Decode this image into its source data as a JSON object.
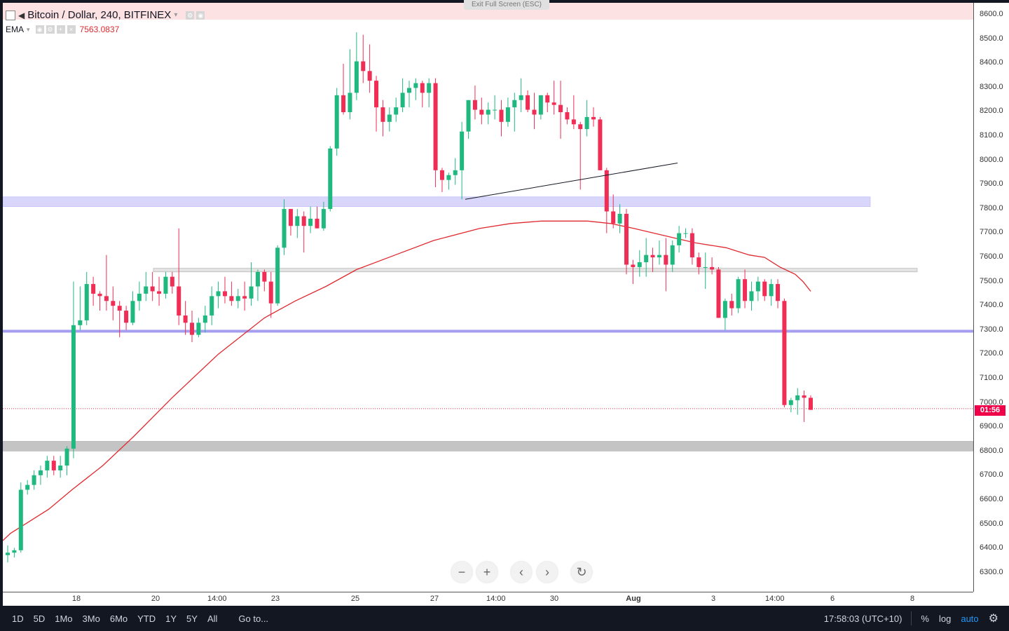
{
  "header": {
    "symbol_title": "Bitcoin / Dollar, 240, BITFINEX",
    "indicator_name": "EMA",
    "indicator_value": "7563.0837",
    "exit_fullscreen": "Exit Full Screen (ESC)"
  },
  "price_axis": {
    "ticks": [
      "8600.0",
      "8500.0",
      "8400.0",
      "8300.0",
      "8200.0",
      "8100.0",
      "8000.0",
      "7900.0",
      "7800.0",
      "7700.0",
      "7600.0",
      "7500.0",
      "7400.0",
      "7300.0",
      "7200.0",
      "7100.0",
      "7000.0",
      "6900.0",
      "6800.0",
      "6700.0",
      "6600.0",
      "6500.0",
      "6400.0",
      "6300.0"
    ],
    "countdown_label": "01:56"
  },
  "time_axis": {
    "ticks": [
      "18",
      "20",
      "14:00",
      "23",
      "25",
      "27",
      "14:00",
      "30",
      "Aug",
      "3",
      "14:00",
      "6",
      "8"
    ]
  },
  "nav": {
    "zoom_out": "−",
    "zoom_in": "+",
    "scroll_left": "‹",
    "scroll_right": "›",
    "reset": "↻"
  },
  "bottom_toolbar": {
    "ranges": [
      "1D",
      "5D",
      "1Mo",
      "3Mo",
      "6Mo",
      "YTD",
      "1Y",
      "5Y",
      "All"
    ],
    "goto": "Go to...",
    "clock": "17:58:03 (UTC+10)",
    "percent": "%",
    "log": "log",
    "auto": "auto",
    "settings_icon": "gear-icon"
  },
  "colors": {
    "up": "#26a69a",
    "up_fill": "#1fb980",
    "down": "#ef2d55",
    "ema": "#e0292f",
    "zone_blue": "#d9d6fb",
    "line_blue": "#a59df0",
    "zone_gray": "#c4c4c4"
  },
  "chart_data": {
    "type": "candlestick",
    "title": "Bitcoin / Dollar, 240, BITFINEX",
    "ylim": [
      6220,
      8640
    ],
    "last_price": 6955,
    "candles_ohlc": [
      [
        6350,
        6390,
        6320,
        6360
      ],
      [
        6360,
        6380,
        6340,
        6370
      ],
      [
        6370,
        6650,
        6360,
        6620
      ],
      [
        6620,
        6660,
        6600,
        6640
      ],
      [
        6640,
        6700,
        6620,
        6680
      ],
      [
        6680,
        6720,
        6640,
        6700
      ],
      [
        6700,
        6760,
        6670,
        6740
      ],
      [
        6740,
        6760,
        6680,
        6700
      ],
      [
        6700,
        6760,
        6670,
        6720
      ],
      [
        6720,
        6800,
        6680,
        6790
      ],
      [
        6790,
        7480,
        6750,
        7300
      ],
      [
        7300,
        7460,
        7280,
        7320
      ],
      [
        7320,
        7520,
        7300,
        7470
      ],
      [
        7470,
        7500,
        7380,
        7430
      ],
      [
        7430,
        7440,
        7360,
        7420
      ],
      [
        7420,
        7590,
        7360,
        7400
      ],
      [
        7400,
        7460,
        7320,
        7380
      ],
      [
        7380,
        7400,
        7250,
        7360
      ],
      [
        7360,
        7380,
        7280,
        7310
      ],
      [
        7310,
        7440,
        7300,
        7400
      ],
      [
        7400,
        7480,
        7360,
        7430
      ],
      [
        7430,
        7520,
        7400,
        7460
      ],
      [
        7460,
        7520,
        7400,
        7440
      ],
      [
        7440,
        7500,
        7380,
        7430
      ],
      [
        7430,
        7520,
        7410,
        7500
      ],
      [
        7500,
        7520,
        7430,
        7460
      ],
      [
        7460,
        7700,
        7300,
        7340
      ],
      [
        7340,
        7400,
        7260,
        7310
      ],
      [
        7310,
        7360,
        7230,
        7260
      ],
      [
        7260,
        7330,
        7250,
        7310
      ],
      [
        7310,
        7380,
        7270,
        7340
      ],
      [
        7340,
        7460,
        7300,
        7420
      ],
      [
        7420,
        7480,
        7370,
        7440
      ],
      [
        7440,
        7500,
        7390,
        7420
      ],
      [
        7420,
        7480,
        7380,
        7400
      ],
      [
        7400,
        7450,
        7370,
        7420
      ],
      [
        7420,
        7480,
        7360,
        7410
      ],
      [
        7410,
        7560,
        7380,
        7460
      ],
      [
        7460,
        7530,
        7400,
        7520
      ],
      [
        7520,
        7530,
        7440,
        7480
      ],
      [
        7480,
        7520,
        7330,
        7390
      ],
      [
        7390,
        7630,
        7380,
        7620
      ],
      [
        7620,
        7820,
        7590,
        7780
      ],
      [
        7780,
        7780,
        7670,
        7710
      ],
      [
        7710,
        7780,
        7660,
        7750
      ],
      [
        7750,
        7770,
        7600,
        7710
      ],
      [
        7710,
        7790,
        7680,
        7740
      ],
      [
        7740,
        7790,
        7700,
        7700
      ],
      [
        7700,
        7810,
        7690,
        7780
      ],
      [
        7780,
        8040,
        7770,
        8030
      ],
      [
        8030,
        8280,
        8000,
        8250
      ],
      [
        8250,
        8380,
        8170,
        8180
      ],
      [
        8180,
        8440,
        8150,
        8260
      ],
      [
        8260,
        8510,
        8230,
        8390
      ],
      [
        8390,
        8500,
        8300,
        8350
      ],
      [
        8350,
        8460,
        8260,
        8310
      ],
      [
        8310,
        8330,
        8100,
        8200
      ],
      [
        8200,
        8230,
        8080,
        8140
      ],
      [
        8140,
        8200,
        8100,
        8170
      ],
      [
        8170,
        8240,
        8140,
        8200
      ],
      [
        8200,
        8320,
        8180,
        8260
      ],
      [
        8260,
        8310,
        8200,
        8280
      ],
      [
        8280,
        8320,
        8230,
        8300
      ],
      [
        8300,
        8310,
        8200,
        8260
      ],
      [
        8260,
        8320,
        8200,
        8300
      ],
      [
        8300,
        8320,
        7870,
        7940
      ],
      [
        7940,
        7950,
        7850,
        7900
      ],
      [
        7900,
        7930,
        7860,
        7920
      ],
      [
        7920,
        7990,
        7880,
        7940
      ],
      [
        7940,
        8140,
        7820,
        8100
      ],
      [
        8100,
        8230,
        8070,
        8230
      ],
      [
        8230,
        8290,
        8150,
        8190
      ],
      [
        8190,
        8240,
        8130,
        8170
      ],
      [
        8170,
        8220,
        8130,
        8190
      ],
      [
        8190,
        8250,
        8150,
        8190
      ],
      [
        8190,
        8230,
        8080,
        8140
      ],
      [
        8140,
        8240,
        8120,
        8200
      ],
      [
        8200,
        8260,
        8100,
        8230
      ],
      [
        8230,
        8320,
        8180,
        8250
      ],
      [
        8250,
        8270,
        8180,
        8190
      ],
      [
        8190,
        8260,
        8110,
        8170
      ],
      [
        8170,
        8250,
        8150,
        8250
      ],
      [
        8250,
        8260,
        8180,
        8220
      ],
      [
        8220,
        8310,
        8170,
        8210
      ],
      [
        8210,
        8310,
        8070,
        8180
      ],
      [
        8180,
        8200,
        8130,
        8150
      ],
      [
        8150,
        8250,
        8110,
        8130
      ],
      [
        8130,
        8140,
        7860,
        8110
      ],
      [
        8110,
        8230,
        8080,
        8160
      ],
      [
        8160,
        8200,
        8120,
        8150
      ],
      [
        8150,
        8160,
        7940,
        7940
      ],
      [
        7940,
        7950,
        7680,
        7770
      ],
      [
        7770,
        7840,
        7700,
        7720
      ],
      [
        7720,
        7800,
        7680,
        7760
      ],
      [
        7760,
        7780,
        7510,
        7550
      ],
      [
        7550,
        7570,
        7470,
        7540
      ],
      [
        7540,
        7610,
        7500,
        7560
      ],
      [
        7560,
        7660,
        7500,
        7590
      ],
      [
        7590,
        7620,
        7520,
        7580
      ],
      [
        7580,
        7650,
        7550,
        7590
      ],
      [
        7590,
        7660,
        7440,
        7550
      ],
      [
        7550,
        7650,
        7520,
        7630
      ],
      [
        7630,
        7710,
        7600,
        7680
      ],
      [
        7680,
        7700,
        7660,
        7680
      ],
      [
        7680,
        7700,
        7550,
        7580
      ],
      [
        7580,
        7600,
        7510,
        7540
      ],
      [
        7540,
        7600,
        7450,
        7540
      ],
      [
        7540,
        7580,
        7510,
        7530
      ],
      [
        7530,
        7540,
        7330,
        7330
      ],
      [
        7330,
        7410,
        7280,
        7400
      ],
      [
        7400,
        7430,
        7340,
        7370
      ],
      [
        7370,
        7500,
        7350,
        7490
      ],
      [
        7490,
        7530,
        7370,
        7400
      ],
      [
        7400,
        7480,
        7360,
        7440
      ],
      [
        7440,
        7500,
        7400,
        7480
      ],
      [
        7480,
        7490,
        7400,
        7420
      ],
      [
        7420,
        7490,
        7380,
        7470
      ],
      [
        7470,
        7490,
        7370,
        7400
      ],
      [
        7400,
        7410,
        6960,
        6970
      ],
      [
        6970,
        7000,
        6940,
        6990
      ],
      [
        6990,
        7040,
        6930,
        7010
      ],
      [
        7010,
        7030,
        6900,
        7000
      ],
      [
        7000,
        7010,
        6950,
        6950
      ]
    ],
    "ema": [
      [
        0,
        6410
      ],
      [
        10,
        6440
      ],
      [
        30,
        6480
      ],
      [
        60,
        6540
      ],
      [
        90,
        6620
      ],
      [
        130,
        6720
      ],
      [
        170,
        6840
      ],
      [
        220,
        7000
      ],
      [
        280,
        7180
      ],
      [
        340,
        7330
      ],
      [
        380,
        7400
      ],
      [
        420,
        7460
      ],
      [
        460,
        7530
      ],
      [
        510,
        7590
      ],
      [
        560,
        7650
      ],
      [
        620,
        7700
      ],
      [
        660,
        7720
      ],
      [
        700,
        7730
      ],
      [
        760,
        7730
      ],
      [
        790,
        7720
      ],
      [
        820,
        7700
      ],
      [
        860,
        7670
      ],
      [
        900,
        7640
      ],
      [
        940,
        7620
      ],
      [
        970,
        7590
      ],
      [
        990,
        7580
      ],
      [
        1010,
        7540
      ],
      [
        1030,
        7510
      ],
      [
        1040,
        7480
      ],
      [
        1050,
        7440
      ]
    ],
    "zones": [
      {
        "type": "band",
        "from": 7790,
        "to": 7830,
        "color": "#d9d6fb"
      },
      {
        "type": "band",
        "from": 7520,
        "to": 7535,
        "color": "#e3e3e3"
      },
      {
        "type": "line",
        "at": 7275,
        "color": "#a59df0"
      },
      {
        "type": "band",
        "from": 6780,
        "to": 6820,
        "color": "#c4c4c4"
      }
    ],
    "trendline": [
      [
        7820
      ],
      [
        7970
      ]
    ]
  }
}
